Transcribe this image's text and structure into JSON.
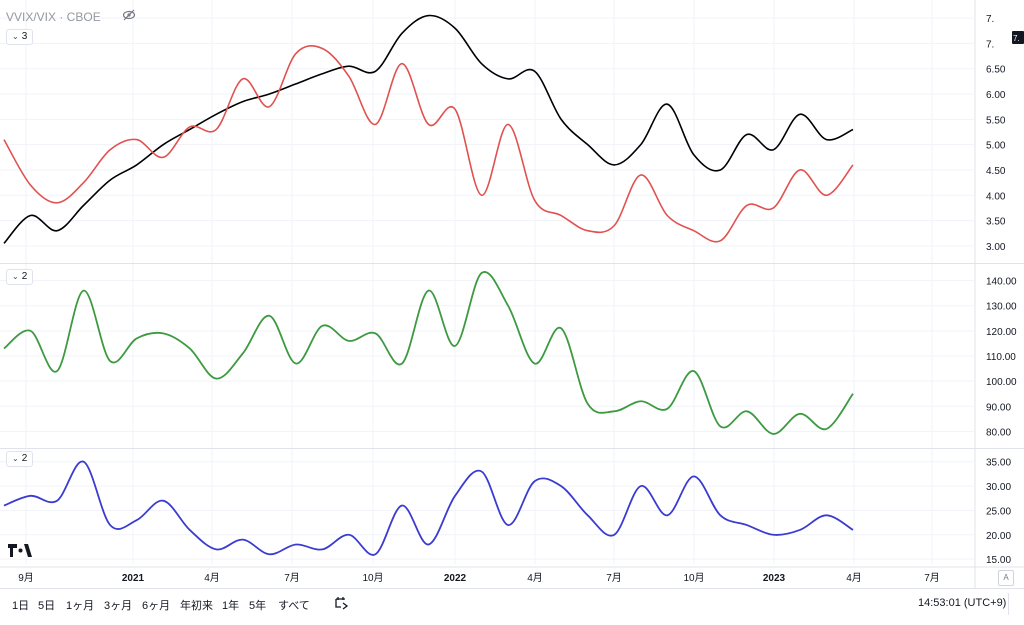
{
  "legend": {
    "title": "VVIX/VIX · CBOE"
  },
  "panes": [
    {
      "chip": "3"
    },
    {
      "chip": "2"
    },
    {
      "chip": "2"
    }
  ],
  "price_label_fragment": "7.",
  "ranges": [
    "1日",
    "5日",
    "1ヶ月",
    "3ヶ月",
    "6ヶ月",
    "年初来",
    "1年",
    "5年",
    "すべて"
  ],
  "clock": "14:53:01 (UTC+9)",
  "auto_label": "A",
  "colors": {
    "black_line": "#000000",
    "red_line": "#e0514f",
    "green_line": "#3d9a40",
    "blue_line": "#3b3ccf",
    "grid": "#f0f3fa"
  },
  "chart_data": [
    {
      "type": "line",
      "title": "VVIX/VIX · CBOE",
      "x_ticks": [
        "9月",
        "2021",
        "4月",
        "7月",
        "10月",
        "2022",
        "4月",
        "7月",
        "10月",
        "2023",
        "4月",
        "7月"
      ],
      "y_ticks": [
        3.0,
        3.5,
        4.0,
        4.5,
        5.0,
        5.5,
        6.0,
        6.5,
        7.0,
        7.5
      ],
      "y_tick_labels": [
        "3.00",
        "3.50",
        "4.00",
        "4.50",
        "5.00",
        "5.50",
        "6.00",
        "6.50",
        "7.",
        "7."
      ],
      "ylim": [
        2.8,
        7.7
      ],
      "x": [
        "2020-08",
        "2020-09",
        "2020-10",
        "2020-11",
        "2020-12",
        "2021-01",
        "2021-02",
        "2021-03",
        "2021-04",
        "2021-05",
        "2021-06",
        "2021-07",
        "2021-08",
        "2021-09",
        "2021-10",
        "2021-11",
        "2021-12",
        "2022-01",
        "2022-02",
        "2022-03",
        "2022-04",
        "2022-05",
        "2022-06",
        "2022-07",
        "2022-08",
        "2022-09",
        "2022-10",
        "2022-11",
        "2022-12",
        "2023-01",
        "2023-02",
        "2023-03",
        "2023-04"
      ],
      "series": [
        {
          "color": "#000000",
          "values": [
            3.05,
            3.6,
            3.3,
            3.8,
            4.3,
            4.6,
            5.0,
            5.3,
            5.6,
            5.85,
            6.0,
            6.2,
            6.4,
            6.55,
            6.45,
            7.2,
            7.55,
            7.3,
            6.6,
            6.3,
            6.45,
            5.5,
            5.0,
            4.6,
            5.0,
            5.8,
            4.8,
            4.5,
            5.2,
            4.9,
            5.6,
            5.1,
            5.3
          ]
        },
        {
          "color": "#e0514f",
          "values": [
            5.1,
            4.2,
            3.85,
            4.25,
            4.9,
            5.1,
            4.75,
            5.35,
            5.3,
            6.3,
            5.75,
            6.8,
            6.9,
            6.35,
            5.4,
            6.6,
            5.4,
            5.7,
            4.0,
            5.4,
            3.9,
            3.6,
            3.3,
            3.4,
            4.4,
            3.6,
            3.3,
            3.1,
            3.8,
            3.75,
            4.5,
            4.0,
            4.6
          ]
        }
      ]
    },
    {
      "type": "line",
      "y_ticks": [
        80,
        90,
        100,
        110,
        120,
        130,
        140
      ],
      "y_tick_labels": [
        "80.00",
        "90.00",
        "100.00",
        "110.00",
        "120.00",
        "130.00",
        "140.00"
      ],
      "ylim": [
        75,
        145
      ],
      "x": [
        "2020-08",
        "2020-09",
        "2020-10",
        "2020-11",
        "2020-12",
        "2021-01",
        "2021-02",
        "2021-03",
        "2021-04",
        "2021-05",
        "2021-06",
        "2021-07",
        "2021-08",
        "2021-09",
        "2021-10",
        "2021-11",
        "2021-12",
        "2022-01",
        "2022-02",
        "2022-03",
        "2022-04",
        "2022-05",
        "2022-06",
        "2022-07",
        "2022-08",
        "2022-09",
        "2022-10",
        "2022-11",
        "2022-12",
        "2023-01",
        "2023-02",
        "2023-03",
        "2023-04"
      ],
      "series": [
        {
          "color": "#3d9a40",
          "values": [
            113,
            120,
            104,
            136,
            108,
            117,
            119,
            113,
            101,
            111,
            126,
            107,
            122,
            116,
            119,
            107,
            136,
            114,
            143,
            130,
            107,
            121,
            91,
            88,
            92,
            89,
            104,
            82,
            88,
            79,
            87,
            81,
            95
          ]
        }
      ]
    },
    {
      "type": "line",
      "y_ticks": [
        15,
        20,
        25,
        30,
        35
      ],
      "y_tick_labels": [
        "15.00",
        "20.00",
        "25.00",
        "30.00",
        "35.00"
      ],
      "ylim": [
        14,
        37
      ],
      "x": [
        "2020-08",
        "2020-09",
        "2020-10",
        "2020-11",
        "2020-12",
        "2021-01",
        "2021-02",
        "2021-03",
        "2021-04",
        "2021-05",
        "2021-06",
        "2021-07",
        "2021-08",
        "2021-09",
        "2021-10",
        "2021-11",
        "2021-12",
        "2022-01",
        "2022-02",
        "2022-03",
        "2022-04",
        "2022-05",
        "2022-06",
        "2022-07",
        "2022-08",
        "2022-09",
        "2022-10",
        "2022-11",
        "2022-12",
        "2023-01",
        "2023-02",
        "2023-03",
        "2023-04"
      ],
      "series": [
        {
          "color": "#3b3ccf",
          "values": [
            26,
            28,
            27,
            35,
            22,
            23,
            27,
            21,
            17,
            19,
            16,
            18,
            17,
            20,
            16,
            26,
            18,
            28,
            33,
            22,
            31,
            30,
            24,
            20,
            30,
            24,
            32,
            24,
            22,
            20,
            21,
            24,
            21
          ]
        }
      ]
    }
  ]
}
